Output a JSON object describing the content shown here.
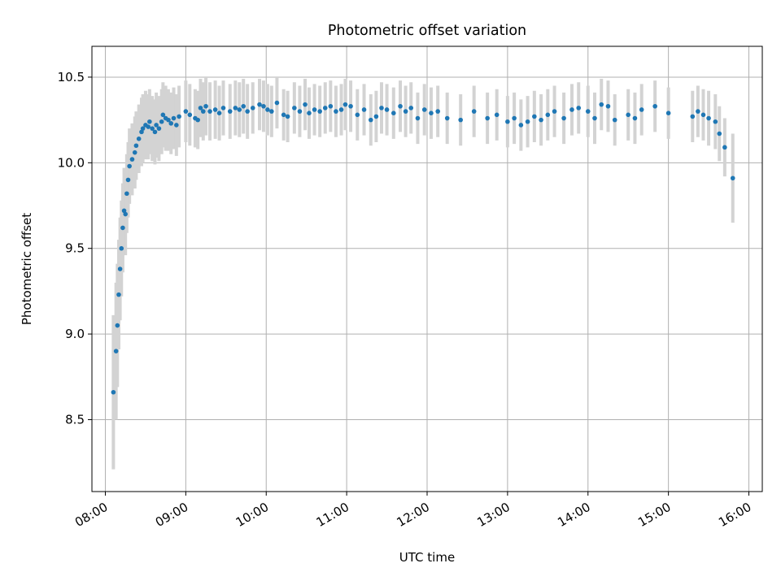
{
  "chart_data": {
    "type": "scatter",
    "title": "Photometric offset variation",
    "xlabel": "UTC time",
    "ylabel": "Photometric offset",
    "x_axis_type": "time",
    "xlim": [
      "07:50",
      "16:10"
    ],
    "ylim": [
      8.08,
      10.68
    ],
    "x_ticks": [
      "08:00",
      "09:00",
      "10:00",
      "11:00",
      "12:00",
      "13:00",
      "14:00",
      "15:00",
      "16:00"
    ],
    "y_ticks": [
      8.5,
      9.0,
      9.5,
      10.0,
      10.5
    ],
    "grid": true,
    "colors": {
      "point": "#1f77b4",
      "errorbar": "#d3d3d3",
      "grid": "#b0b0b0"
    },
    "series": [
      {
        "x": [
          "08:06",
          "08:08",
          "08:09",
          "08:10",
          "08:11",
          "08:12",
          "08:13",
          "08:14",
          "08:15",
          "08:16",
          "08:17",
          "08:18",
          "08:20",
          "08:22",
          "08:23",
          "08:25",
          "08:27",
          "08:28",
          "08:30",
          "08:32",
          "08:33",
          "08:35",
          "08:37",
          "08:38",
          "08:40",
          "08:42",
          "08:43",
          "08:45",
          "08:47",
          "08:49",
          "08:51",
          "08:53",
          "08:55",
          "09:00",
          "09:03",
          "09:07",
          "09:09",
          "09:11",
          "09:13",
          "09:15",
          "09:18",
          "09:22",
          "09:25",
          "09:28",
          "09:33",
          "09:37",
          "09:40",
          "09:43",
          "09:46",
          "09:50",
          "09:55",
          "09:58",
          "10:01",
          "10:04",
          "10:08",
          "10:13",
          "10:16",
          "10:21",
          "10:25",
          "10:29",
          "10:32",
          "10:36",
          "10:40",
          "10:44",
          "10:48",
          "10:52",
          "10:56",
          "10:59",
          "11:03",
          "11:08",
          "11:13",
          "11:18",
          "11:22",
          "11:26",
          "11:30",
          "11:35",
          "11:40",
          "11:44",
          "11:48",
          "11:53",
          "11:58",
          "12:03",
          "12:08",
          "12:15",
          "12:25",
          "12:35",
          "12:45",
          "12:52",
          "13:00",
          "13:05",
          "13:10",
          "13:15",
          "13:20",
          "13:25",
          "13:30",
          "13:35",
          "13:42",
          "13:48",
          "13:53",
          "14:00",
          "14:05",
          "14:10",
          "14:15",
          "14:20",
          "14:30",
          "14:35",
          "14:40",
          "14:50",
          "15:00",
          "15:18",
          "15:22",
          "15:26",
          "15:30",
          "15:35",
          "15:38",
          "15:42",
          "15:48"
        ],
        "y": [
          8.66,
          8.9,
          9.05,
          9.23,
          9.38,
          9.5,
          9.62,
          9.72,
          9.7,
          9.82,
          9.9,
          9.98,
          10.02,
          10.06,
          10.1,
          10.14,
          10.18,
          10.2,
          10.22,
          10.21,
          10.24,
          10.2,
          10.18,
          10.22,
          10.2,
          10.24,
          10.28,
          10.26,
          10.25,
          10.23,
          10.26,
          10.22,
          10.27,
          10.3,
          10.28,
          10.26,
          10.25,
          10.32,
          10.3,
          10.33,
          10.3,
          10.31,
          10.29,
          10.32,
          10.3,
          10.32,
          10.31,
          10.33,
          10.3,
          10.32,
          10.34,
          10.33,
          10.31,
          10.3,
          10.35,
          10.28,
          10.27,
          10.32,
          10.3,
          10.34,
          10.29,
          10.31,
          10.3,
          10.32,
          10.33,
          10.3,
          10.31,
          10.34,
          10.33,
          10.28,
          10.31,
          10.25,
          10.27,
          10.32,
          10.31,
          10.29,
          10.33,
          10.3,
          10.32,
          10.26,
          10.31,
          10.29,
          10.3,
          10.26,
          10.25,
          10.3,
          10.26,
          10.28,
          10.24,
          10.26,
          10.22,
          10.24,
          10.27,
          10.25,
          10.28,
          10.3,
          10.26,
          10.31,
          10.32,
          10.3,
          10.26,
          10.34,
          10.33,
          10.25,
          10.28,
          10.26,
          10.31,
          10.33,
          10.29,
          10.27,
          10.3,
          10.28,
          10.26,
          10.24,
          10.17,
          10.09,
          9.91
        ],
        "yerr": [
          0.45,
          0.4,
          0.36,
          0.32,
          0.3,
          0.28,
          0.26,
          0.25,
          0.24,
          0.23,
          0.22,
          0.22,
          0.21,
          0.21,
          0.2,
          0.2,
          0.2,
          0.2,
          0.2,
          0.19,
          0.19,
          0.19,
          0.19,
          0.19,
          0.19,
          0.19,
          0.19,
          0.19,
          0.18,
          0.18,
          0.18,
          0.18,
          0.18,
          0.18,
          0.18,
          0.17,
          0.17,
          0.17,
          0.17,
          0.17,
          0.17,
          0.17,
          0.16,
          0.16,
          0.16,
          0.16,
          0.16,
          0.16,
          0.16,
          0.15,
          0.15,
          0.15,
          0.15,
          0.15,
          0.15,
          0.15,
          0.15,
          0.15,
          0.15,
          0.15,
          0.15,
          0.15,
          0.15,
          0.15,
          0.15,
          0.15,
          0.15,
          0.15,
          0.15,
          0.15,
          0.15,
          0.15,
          0.15,
          0.15,
          0.15,
          0.15,
          0.15,
          0.15,
          0.15,
          0.15,
          0.15,
          0.15,
          0.15,
          0.15,
          0.15,
          0.15,
          0.15,
          0.15,
          0.15,
          0.15,
          0.15,
          0.15,
          0.15,
          0.15,
          0.15,
          0.15,
          0.15,
          0.15,
          0.15,
          0.15,
          0.15,
          0.15,
          0.15,
          0.15,
          0.15,
          0.15,
          0.15,
          0.15,
          0.15,
          0.15,
          0.15,
          0.15,
          0.16,
          0.16,
          0.16,
          0.17,
          0.26
        ]
      }
    ]
  }
}
